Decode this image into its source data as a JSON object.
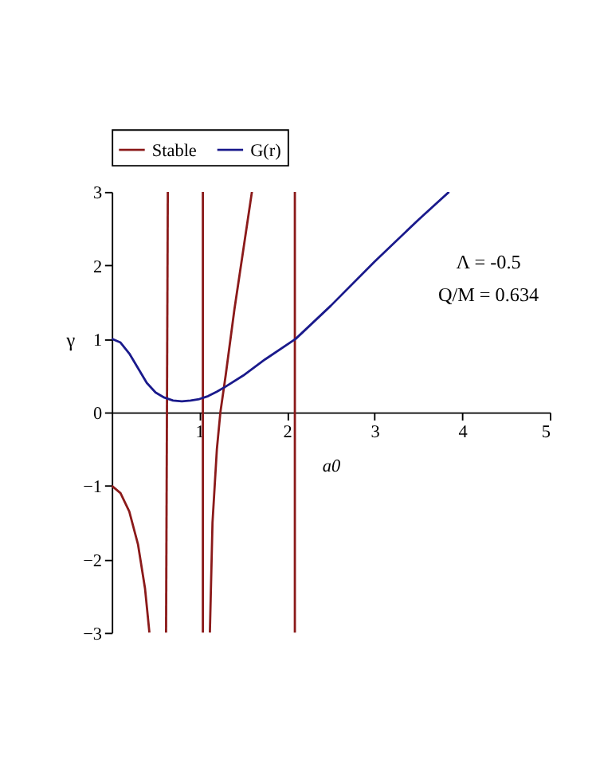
{
  "chart_data": {
    "type": "line",
    "xlabel": "a0",
    "ylabel": "γ",
    "xlim": [
      0,
      5
    ],
    "ylim": [
      -3,
      3
    ],
    "xticks": [
      1,
      2,
      3,
      4,
      5
    ],
    "yticks": [
      -3,
      -2,
      -1,
      0,
      1,
      2,
      3
    ],
    "legend": "top",
    "grid": false,
    "line_style": "solid",
    "marker": "none",
    "annotations": [
      "Λ = -0.5",
      "Q/M = 0.634"
    ],
    "series": [
      {
        "name": "Stable",
        "color": "#8b1a1a",
        "x": [
          0,
          0.1,
          0.2,
          0.3,
          0.38,
          0.43,
          null,
          0.62,
          0.64,
          null,
          1.04,
          1.04,
          null,
          1.12,
          1.15,
          1.2,
          1.24,
          1.3,
          1.4,
          1.5,
          1.6,
          null,
          2.09,
          2.09
        ],
        "values": [
          -1,
          -1.1,
          -1.35,
          -1.8,
          -2.4,
          -3,
          null,
          -3,
          3,
          null,
          -3,
          3,
          null,
          -3,
          -1.5,
          -0.5,
          0,
          0.5,
          1.4,
          2.2,
          3,
          null,
          -3,
          3
        ]
      },
      {
        "name": "G(r)",
        "color": "#1a1a8c",
        "x": [
          0,
          0.1,
          0.2,
          0.3,
          0.4,
          0.5,
          0.6,
          0.7,
          0.8,
          0.9,
          1.0,
          1.1,
          1.2,
          1.3,
          1.5,
          1.75,
          2.1,
          2.5,
          3,
          3.5,
          3.85
        ],
        "values": [
          1,
          0.95,
          0.8,
          0.6,
          0.4,
          0.27,
          0.2,
          0.16,
          0.15,
          0.16,
          0.18,
          0.22,
          0.28,
          0.35,
          0.5,
          0.72,
          1.0,
          1.45,
          2.05,
          2.62,
          3.0
        ]
      }
    ]
  }
}
